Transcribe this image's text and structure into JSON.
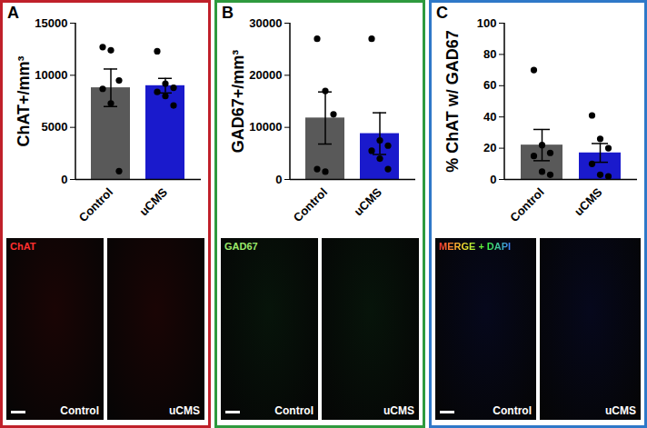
{
  "chart_data": [
    {
      "type": "bar",
      "panel_label": "A",
      "ylabel": "ChAT+/mm³",
      "categories": [
        "Control",
        "uCMS"
      ],
      "values": [
        8800,
        9000
      ],
      "error": [
        1800,
        700
      ],
      "points": [
        [
          12700,
          12400,
          9500,
          8700,
          7300,
          800
        ],
        [
          12300,
          9200,
          8800,
          8400,
          8000,
          7100
        ]
      ],
      "colors": [
        "#595959",
        "#1a1acc"
      ],
      "ylim": [
        0,
        15000
      ],
      "yticks": [
        0,
        5000,
        10000,
        15000
      ],
      "micrograph": {
        "stain": "ChAT",
        "conditions": [
          "Control",
          "uCMS"
        ]
      }
    },
    {
      "type": "bar",
      "panel_label": "B",
      "ylabel": "GAD67+/mm³",
      "categories": [
        "Control",
        "uCMS"
      ],
      "values": [
        11800,
        8800
      ],
      "error": [
        5000,
        4000
      ],
      "points": [
        [
          27000,
          17000,
          12500,
          2000,
          1500
        ],
        [
          27000,
          7500,
          6500,
          5500,
          4000,
          2000
        ]
      ],
      "colors": [
        "#595959",
        "#1a1acc"
      ],
      "ylim": [
        0,
        30000
      ],
      "yticks": [
        0,
        10000,
        20000,
        30000
      ],
      "micrograph": {
        "stain": "GAD67",
        "conditions": [
          "Control",
          "uCMS"
        ]
      }
    },
    {
      "type": "bar",
      "panel_label": "C",
      "ylabel": "% ChAT w/ GAD67",
      "categories": [
        "Control",
        "uCMS"
      ],
      "values": [
        22,
        17
      ],
      "error": [
        10,
        6
      ],
      "points": [
        [
          70,
          22,
          17,
          15,
          5,
          3
        ],
        [
          41,
          26,
          20,
          10,
          3,
          2
        ]
      ],
      "colors": [
        "#595959",
        "#1a1acc"
      ],
      "ylim": [
        0,
        100
      ],
      "yticks": [
        0,
        20,
        40,
        60,
        80,
        100
      ],
      "micrograph": {
        "stain": "MERGE + DAPI",
        "conditions": [
          "Control",
          "uCMS"
        ]
      }
    }
  ]
}
